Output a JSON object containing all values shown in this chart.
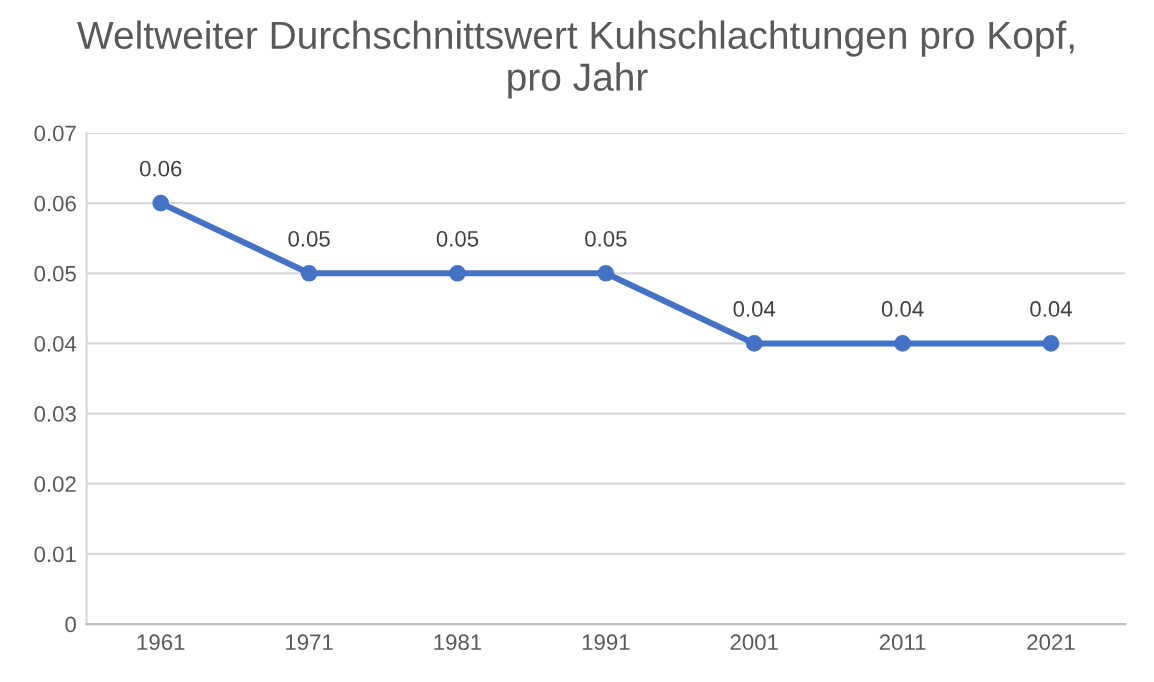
{
  "chart_data": {
    "type": "line",
    "title": "Weltweiter Durchschnittswert Kuhschlachtungen pro Kopf,\npro Jahr",
    "categories": [
      "1961",
      "1971",
      "1981",
      "1991",
      "2001",
      "2011",
      "2021"
    ],
    "series": [
      {
        "color": "#4472c4",
        "values": [
          0.06,
          0.05,
          0.05,
          0.05,
          0.04,
          0.04,
          0.04
        ]
      }
    ],
    "ylim": [
      0,
      0.07
    ],
    "yticks": [
      0,
      0.01,
      0.02,
      0.03,
      0.04,
      0.05,
      0.06,
      0.07
    ],
    "grid": "y",
    "marker": "circle",
    "line_style": "solid",
    "data_labels": true,
    "legend": false
  }
}
